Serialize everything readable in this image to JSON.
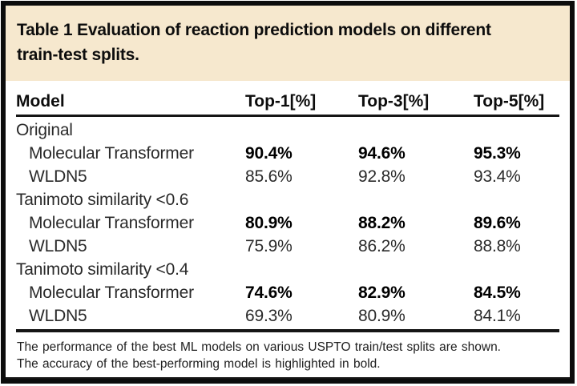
{
  "caption": {
    "lines": [
      "Table 1 Evaluation of reaction prediction models on different",
      "train-test splits."
    ]
  },
  "table": {
    "columns": [
      "Model",
      "Top-1[%]",
      "Top-3[%]",
      "Top-5[%]"
    ],
    "groups": [
      {
        "label": "Original",
        "rows": [
          {
            "model": "Molecular Transformer",
            "top1": "90.4%",
            "top3": "94.6%",
            "top5": "95.3%",
            "bold": true
          },
          {
            "model": "WLDN5",
            "top1": "85.6%",
            "top3": "92.8%",
            "top5": "93.4%",
            "bold": false
          }
        ]
      },
      {
        "label": "Tanimoto similarity <0.6",
        "rows": [
          {
            "model": "Molecular Transformer",
            "top1": "80.9%",
            "top3": "88.2%",
            "top5": "89.6%",
            "bold": true
          },
          {
            "model": "WLDN5",
            "top1": "75.9%",
            "top3": "86.2%",
            "top5": "88.8%",
            "bold": false
          }
        ]
      },
      {
        "label": "Tanimoto similarity <0.4",
        "rows": [
          {
            "model": "Molecular Transformer",
            "top1": "74.6%",
            "top3": "82.9%",
            "top5": "84.5%",
            "bold": true
          },
          {
            "model": "WLDN5",
            "top1": "69.3%",
            "top3": "80.9%",
            "top5": "84.1%",
            "bold": false
          }
        ]
      }
    ]
  },
  "footnote": {
    "lines": [
      "The performance of the best ML models on various USPTO train/test splits are shown.",
      "The accuracy of the best-performing model is highlighted in bold."
    ]
  },
  "colors": {
    "caption_background": "#f6e8ce",
    "border": "#0c0c0c",
    "text": "#2a2a2a",
    "bold_text": "#000000"
  }
}
